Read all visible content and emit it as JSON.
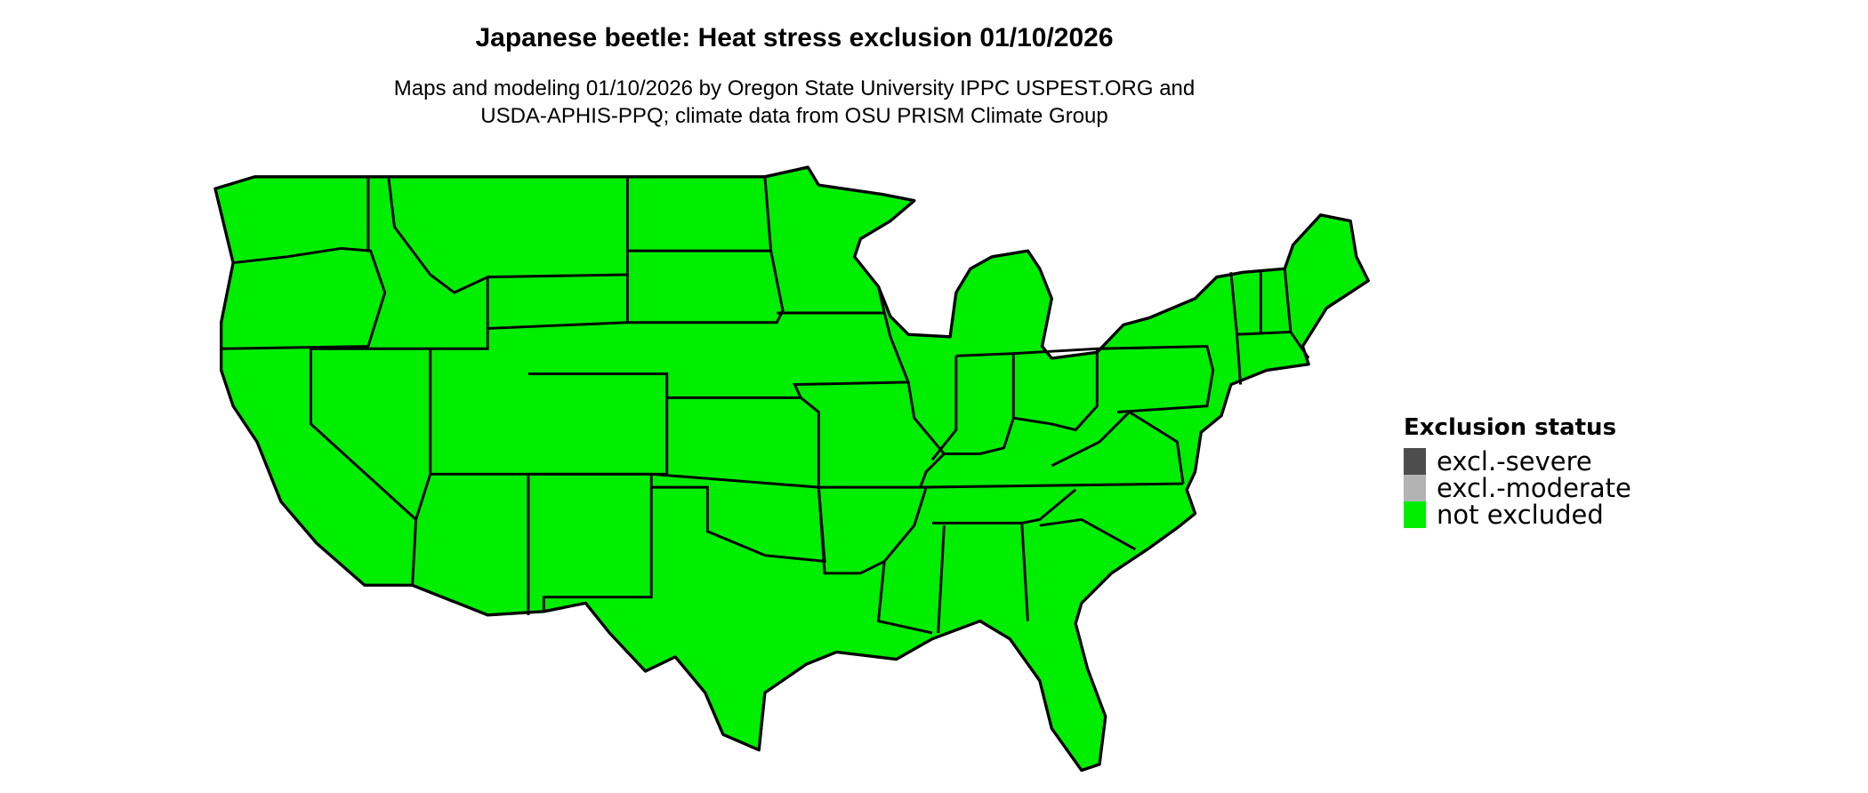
{
  "title": "Japanese beetle: Heat stress exclusion 01/10/2026",
  "subtitle_line1": "Maps and modeling 01/10/2026 by Oregon State University IPPC USPEST.ORG and",
  "subtitle_line2": "USDA-APHIS-PPQ; climate data from OSU PRISM Climate Group",
  "map": {
    "region": "Contiguous United States",
    "fill_status": "not excluded",
    "border_color": "#000000"
  },
  "legend": {
    "title": "Exclusion status",
    "items": [
      {
        "label": "excl.-severe",
        "color": "#4d4d4d"
      },
      {
        "label": "excl.-moderate",
        "color": "#b3b3b3"
      },
      {
        "label": "not excluded",
        "color": "#00ee00"
      }
    ]
  }
}
